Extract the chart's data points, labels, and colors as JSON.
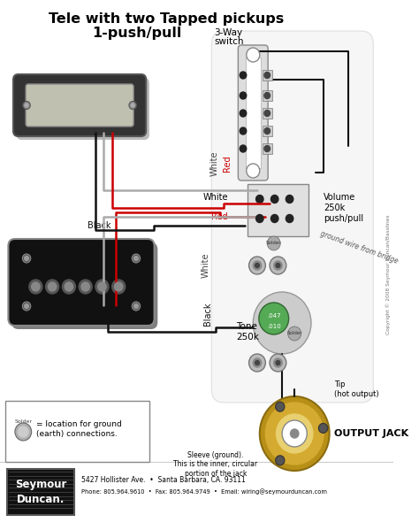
{
  "title_line1": "Tele with two Tapped pickups",
  "title_line2": "1-push/pull",
  "title_small1": "3-Way",
  "title_small2": "switch",
  "bg_color": "#ffffff",
  "figure_width": 4.74,
  "figure_height": 5.99,
  "dpi": 100,
  "footer_line1": "5427 Hollister Ave.  •  Santa Barbara, CA. 93111",
  "footer_line2": "Phone: 805.964.9610  •  Fax: 805.964.9749  •  Email: wiring@seymourduncan.com",
  "legend_text": "= location for ground\n(earth) connections.",
  "output_jack_label": "OUTPUT JACK",
  "sleeve_label": "Sleeve (ground).\nThis is the inner, circular\nportion of the jack",
  "tip_label": "Tip\n(hot output)",
  "volume_label": "Volume\n250k\npush/pull",
  "tone_label": "Tone\n250k",
  "ground_wire_label": "ground wire from bridge",
  "white_label": "White",
  "red_label": "Red",
  "black_label1": "Black",
  "black_label2": "Black",
  "white_label2": "White",
  "copyright": "Copyright © 2008 Seymour Duncan/Basslines",
  "sd_company": "Seymour\nDuncan.",
  "neck_pickup_body": "#2a2a2a",
  "neck_pickup_cover": "#c8c8b8",
  "bridge_pickup_body": "#1a1a1a",
  "bridge_pickup_pole": "#888888",
  "switch_body": "#f0f0f0",
  "switch_border": "#999999",
  "pot_color_volume": "#cccccc",
  "pot_color_tone": "#55aa55",
  "jack_outer_color": "#c8a020",
  "jack_inner_color": "#ffffff",
  "wire_red": "#cc0000",
  "wire_black": "#111111",
  "wire_white": "#aaaaaa",
  "wire_bare": "#999999",
  "solder_color": "#aaaaaa",
  "panel_bg": "#e8e8e8"
}
